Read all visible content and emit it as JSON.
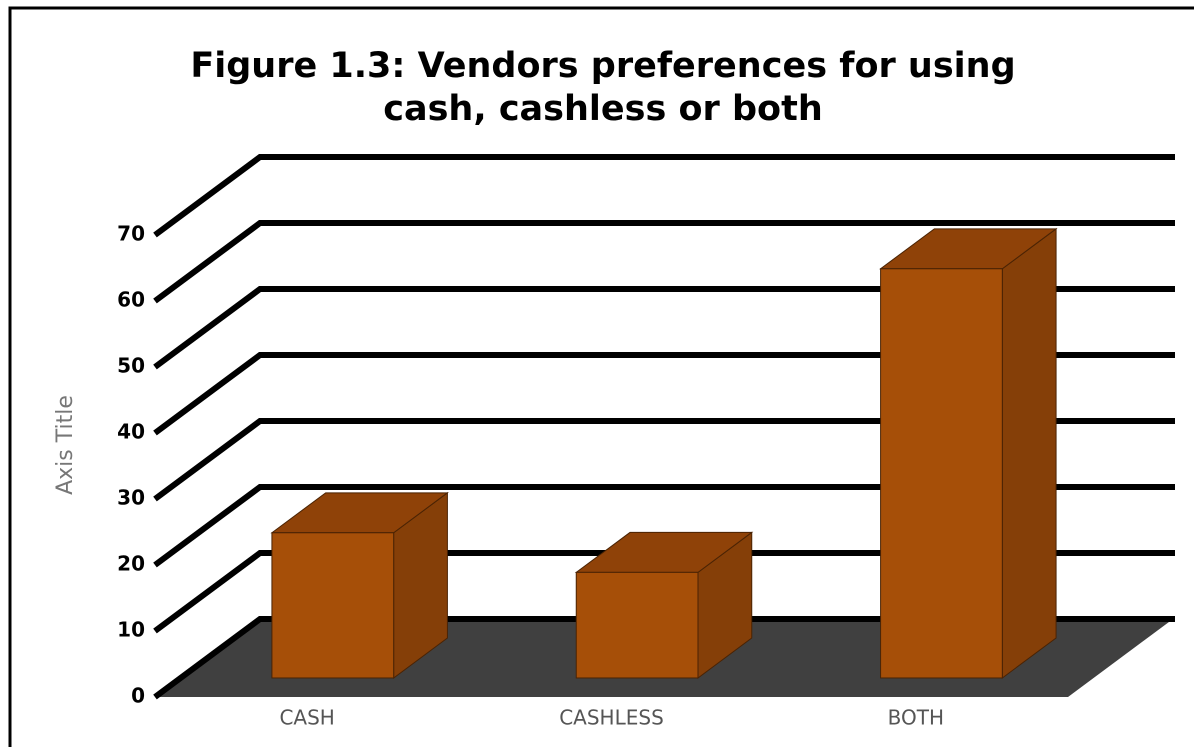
{
  "chart_data": {
    "type": "bar3d",
    "title": "Figure 1.3: Vendors preferences for using cash, cashless or both",
    "y_axis_label": "Axis Title",
    "categories": [
      "CASH",
      "CASHLESS",
      "BOTH"
    ],
    "values": [
      22,
      16,
      62
    ],
    "color": "#a64f08",
    "ylim": [
      0,
      70
    ],
    "yticks": [
      0,
      10,
      20,
      30,
      40,
      50,
      60,
      70
    ],
    "grid": true
  }
}
